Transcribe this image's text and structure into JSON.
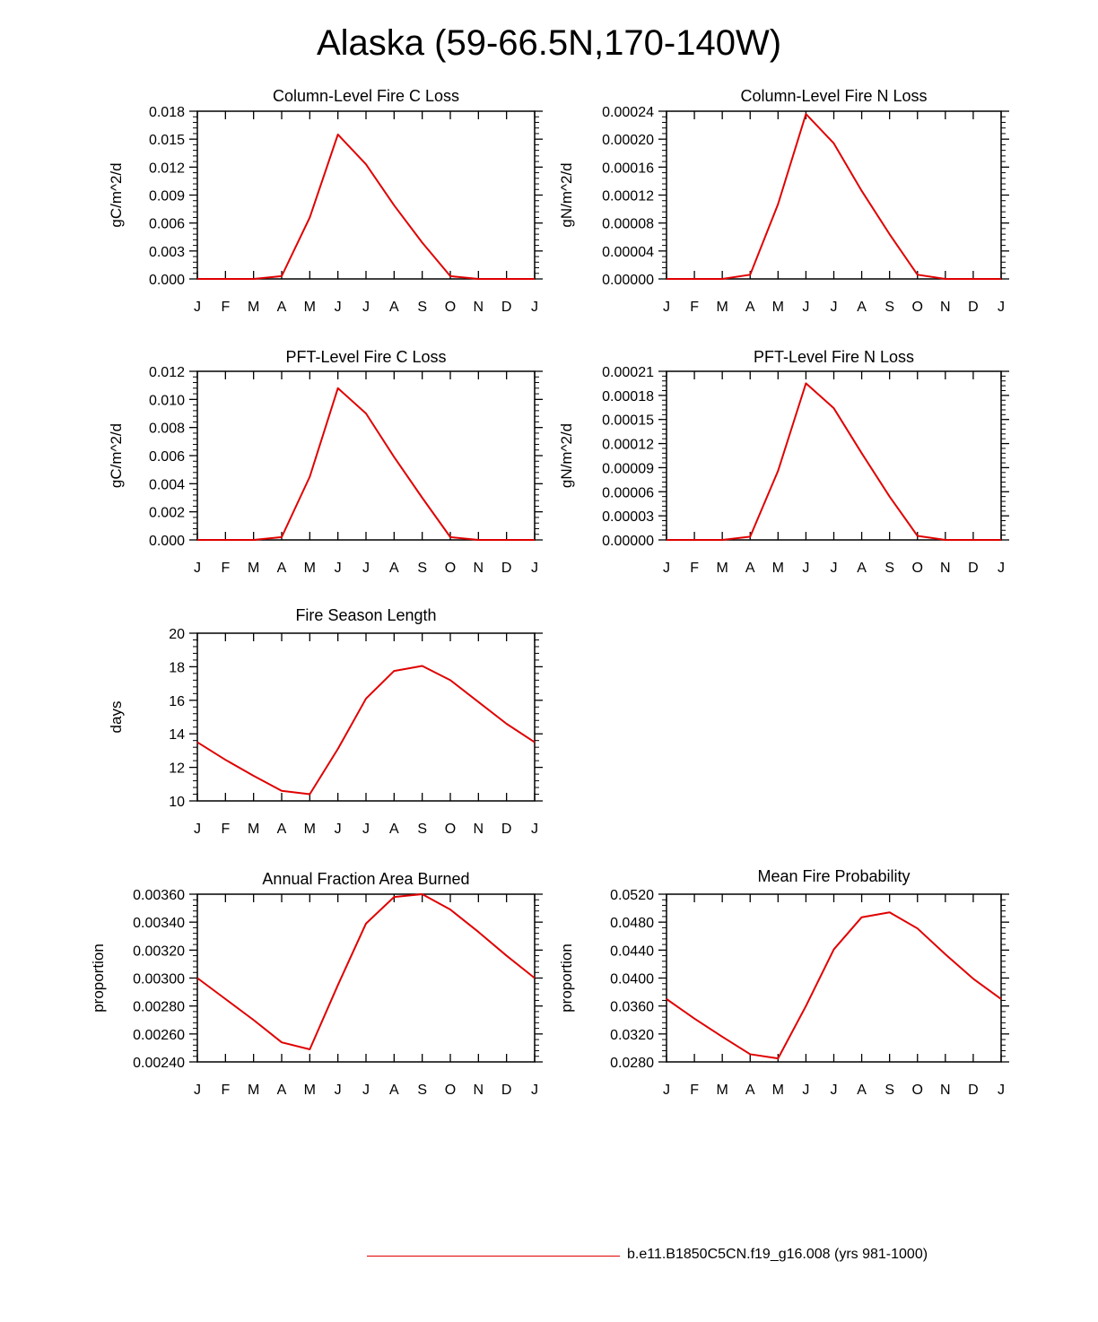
{
  "page": {
    "title": "Alaska (59-66.5N,170-140W)",
    "line_color": "#e00000"
  },
  "legend": {
    "label": "b.e11.B1850C5CN.f19_g16.008 (yrs 981-1000)"
  },
  "chart_data": [
    {
      "id": "col-c-loss",
      "type": "line",
      "title": "Column-Level Fire C Loss",
      "ylabel": "gC/m^2/d",
      "categories": [
        "J",
        "F",
        "M",
        "A",
        "M",
        "J",
        "J",
        "A",
        "S",
        "O",
        "N",
        "D",
        "J"
      ],
      "ylim": [
        0,
        0.018
      ],
      "yticks": [
        "0.000",
        "0.003",
        "0.006",
        "0.009",
        "0.012",
        "0.015",
        "0.018"
      ],
      "values": [
        0.0,
        0.0,
        0.0,
        0.0003,
        0.0066,
        0.0155,
        0.0123,
        0.0079,
        0.0039,
        0.0003,
        0.0,
        0.0,
        0.0
      ]
    },
    {
      "id": "col-n-loss",
      "type": "line",
      "title": "Column-Level Fire N Loss",
      "ylabel": "gN/m^2/d",
      "categories": [
        "J",
        "F",
        "M",
        "A",
        "M",
        "J",
        "J",
        "A",
        "S",
        "O",
        "N",
        "D",
        "J"
      ],
      "ylim": [
        0,
        0.00024
      ],
      "yticks": [
        "0.00000",
        "0.00004",
        "0.00008",
        "0.00012",
        "0.00016",
        "0.00020",
        "0.00024"
      ],
      "values": [
        0.0,
        0.0,
        0.0,
        6e-06,
        0.000107,
        0.000236,
        0.000194,
        0.000126,
        6.4e-05,
        6e-06,
        0.0,
        0.0,
        0.0
      ]
    },
    {
      "id": "pft-c-loss",
      "type": "line",
      "title": "PFT-Level Fire C Loss",
      "ylabel": "gC/m^2/d",
      "categories": [
        "J",
        "F",
        "M",
        "A",
        "M",
        "J",
        "J",
        "A",
        "S",
        "O",
        "N",
        "D",
        "J"
      ],
      "ylim": [
        0,
        0.012
      ],
      "yticks": [
        "0.000",
        "0.002",
        "0.004",
        "0.006",
        "0.008",
        "0.010",
        "0.012"
      ],
      "values": [
        0.0,
        0.0,
        0.0,
        0.0002,
        0.0045,
        0.0108,
        0.009,
        0.0059,
        0.003,
        0.0002,
        0.0,
        0.0,
        0.0
      ]
    },
    {
      "id": "pft-n-loss",
      "type": "line",
      "title": "PFT-Level Fire N Loss",
      "ylabel": "gN/m^2/d",
      "categories": [
        "J",
        "F",
        "M",
        "A",
        "M",
        "J",
        "J",
        "A",
        "S",
        "O",
        "N",
        "D",
        "J"
      ],
      "ylim": [
        0,
        0.00021
      ],
      "yticks": [
        "0.00000",
        "0.00003",
        "0.00006",
        "0.00009",
        "0.00012",
        "0.00015",
        "0.00018",
        "0.00021"
      ],
      "values": [
        0.0,
        0.0,
        0.0,
        4e-06,
        8.6e-05,
        0.000195,
        0.000164,
        0.000108,
        5.4e-05,
        5e-06,
        0.0,
        0.0,
        0.0
      ]
    },
    {
      "id": "fire-season",
      "type": "line",
      "title": "Fire Season Length",
      "ylabel": "days",
      "categories": [
        "J",
        "F",
        "M",
        "A",
        "M",
        "J",
        "J",
        "A",
        "S",
        "O",
        "N",
        "D",
        "J"
      ],
      "ylim": [
        10,
        20
      ],
      "yticks": [
        "10",
        "12",
        "14",
        "16",
        "18",
        "20"
      ],
      "values": [
        13.5,
        12.45,
        11.5,
        10.6,
        10.4,
        13.1,
        16.1,
        17.75,
        18.05,
        17.2,
        15.9,
        14.6,
        13.5
      ]
    },
    {
      "id": "area-burned",
      "type": "line",
      "title": "Annual Fraction Area Burned",
      "ylabel": "proportion",
      "categories": [
        "J",
        "F",
        "M",
        "A",
        "M",
        "J",
        "J",
        "A",
        "S",
        "O",
        "N",
        "D",
        "J"
      ],
      "ylim": [
        0.0024,
        0.0036
      ],
      "yticks": [
        "0.00240",
        "0.00260",
        "0.00280",
        "0.00300",
        "0.00320",
        "0.00340",
        "0.00360"
      ],
      "values": [
        0.003,
        0.00285,
        0.0027,
        0.00254,
        0.00249,
        0.00295,
        0.00339,
        0.00358,
        0.0036,
        0.00349,
        0.00333,
        0.00316,
        0.003
      ]
    },
    {
      "id": "fire-prob",
      "type": "line",
      "title": "Mean Fire Probability",
      "ylabel": "proportion",
      "categories": [
        "J",
        "F",
        "M",
        "A",
        "M",
        "J",
        "J",
        "A",
        "S",
        "O",
        "N",
        "D",
        "J"
      ],
      "ylim": [
        0.028,
        0.052
      ],
      "yticks": [
        "0.0280",
        "0.0320",
        "0.0360",
        "0.0400",
        "0.0440",
        "0.0480",
        "0.0520"
      ],
      "values": [
        0.037,
        0.0342,
        0.0316,
        0.0291,
        0.0285,
        0.036,
        0.0441,
        0.0487,
        0.0494,
        0.0471,
        0.0434,
        0.0399,
        0.037
      ]
    }
  ]
}
